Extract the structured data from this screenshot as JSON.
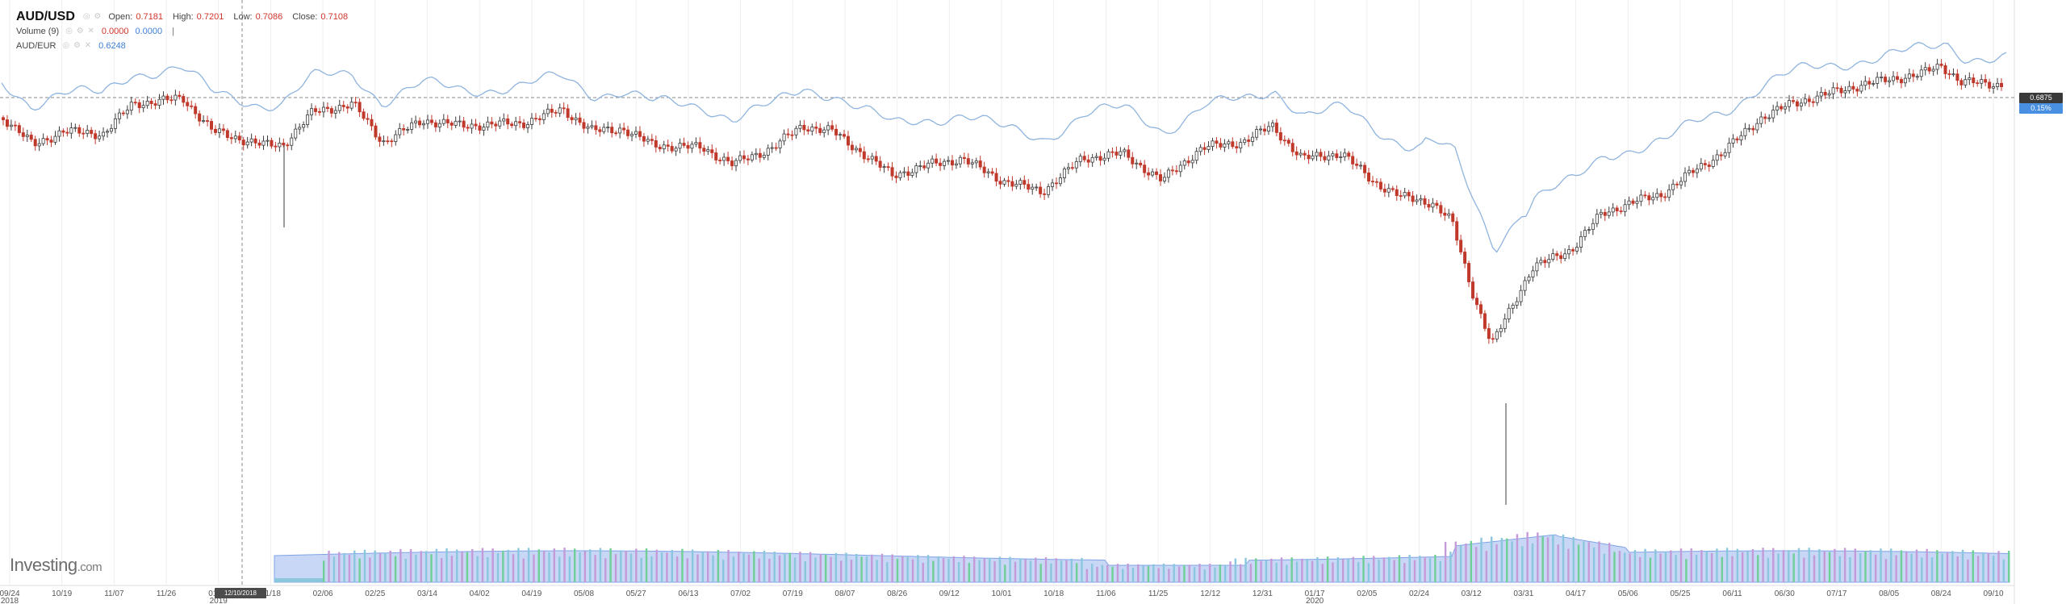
{
  "legend": {
    "symbol": "AUD/USD",
    "open_label": "Open:",
    "open_value": "0.7181",
    "high_label": "High:",
    "high_value": "0.7201",
    "low_label": "Low:",
    "low_value": "0.7086",
    "close_label": "Close:",
    "close_value": "0.7108",
    "volume_name": "Volume (9)",
    "volume_value_1": "0.0000",
    "volume_value_2": "0.0000",
    "volume_sep": "|",
    "compare_name": "AUD/EUR",
    "compare_value": "0.6248"
  },
  "price_tag": "0.6875",
  "pct_tag": "0.15%",
  "crosshair_date": "12/10/2018",
  "logo": {
    "main": "Investing",
    "suffix": ".com"
  },
  "x_axis": {
    "labels": [
      {
        "text": "09/24",
        "year": "2018"
      },
      {
        "text": "10/19"
      },
      {
        "text": "11/07"
      },
      {
        "text": "11/26"
      },
      {
        "text": "01/01",
        "year": "2019"
      },
      {
        "text": "01/18"
      },
      {
        "text": "02/06"
      },
      {
        "text": "02/25"
      },
      {
        "text": "03/14"
      },
      {
        "text": "04/02"
      },
      {
        "text": "04/19"
      },
      {
        "text": "05/08"
      },
      {
        "text": "05/27"
      },
      {
        "text": "06/13"
      },
      {
        "text": "07/02"
      },
      {
        "text": "07/19"
      },
      {
        "text": "08/07"
      },
      {
        "text": "08/26"
      },
      {
        "text": "09/12"
      },
      {
        "text": "10/01"
      },
      {
        "text": "10/18"
      },
      {
        "text": "11/06"
      },
      {
        "text": "11/25"
      },
      {
        "text": "12/12"
      },
      {
        "text": "12/31"
      },
      {
        "text": "01/17",
        "year": "2020"
      },
      {
        "text": "02/05"
      },
      {
        "text": "02/24"
      },
      {
        "text": "03/12"
      },
      {
        "text": "03/31"
      },
      {
        "text": "04/17"
      },
      {
        "text": "05/06"
      },
      {
        "text": "05/25"
      },
      {
        "text": "06/11"
      },
      {
        "text": "06/30"
      },
      {
        "text": "07/17"
      },
      {
        "text": "08/05"
      },
      {
        "text": "08/24"
      },
      {
        "text": "09/10"
      }
    ]
  },
  "colors": {
    "up": "#3b3b3b",
    "down": "#c0392b",
    "compare_line": "#8fb4de",
    "vol_a": "#8ac6dd",
    "vol_b": "#c49bd8",
    "vol_c": "#6fcf97",
    "vol_ma_fill": "#b9cdf3",
    "grid": "#eeeeee",
    "crosshair": "#888888"
  },
  "chart_data": {
    "type": "candlestick",
    "series": [
      {
        "name": "AUD/USD"
      },
      {
        "name": "Volume (9)"
      },
      {
        "name": "AUD/EUR"
      }
    ],
    "last_values": {
      "AUD/USD": 0.6875,
      "AUD/EUR": 0.6248
    },
    "grid": true
  }
}
